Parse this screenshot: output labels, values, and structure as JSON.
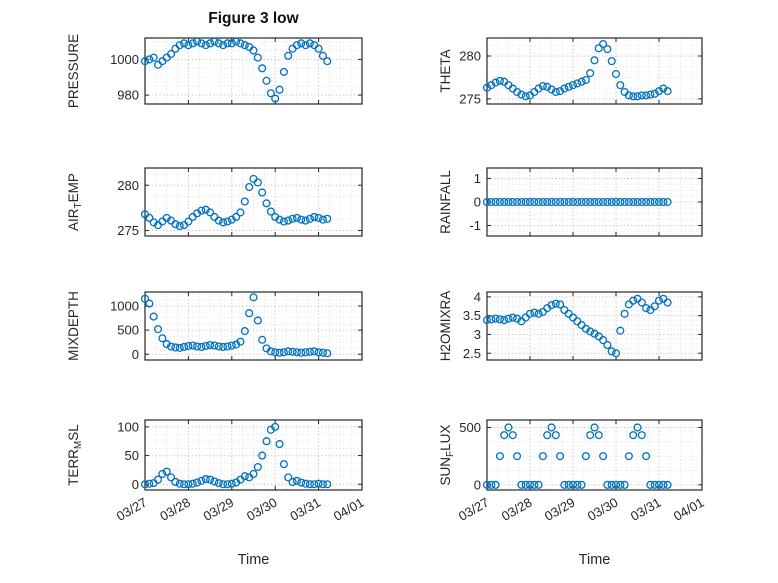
{
  "chart_data": {
    "type": "scatter",
    "title": "Figure 3 low",
    "xlabel": "Time",
    "marker": "open-circle",
    "marker_color": "#0072BD",
    "grid": "dotted",
    "minor_grid": true,
    "layout": {
      "rows": 4,
      "cols": 2,
      "legend": "none"
    },
    "x_unit": "days from 03/27",
    "xlim": [
      0,
      5
    ],
    "xticks": [
      0,
      1,
      2,
      3,
      4,
      5
    ],
    "xtick_labels": [
      "03/27",
      "03/28",
      "03/29",
      "03/30",
      "03/31",
      "04/01"
    ],
    "x": [
      0,
      0.1,
      0.2,
      0.3,
      0.4,
      0.5,
      0.6,
      0.7,
      0.8,
      0.9,
      1,
      1.1,
      1.2,
      1.3,
      1.4,
      1.5,
      1.6,
      1.7,
      1.8,
      1.9,
      2,
      2.1,
      2.2,
      2.3,
      2.4,
      2.5,
      2.6,
      2.7,
      2.8,
      2.9,
      3,
      3.1,
      3.2,
      3.3,
      3.4,
      3.5,
      3.6,
      3.7,
      3.8,
      3.9,
      4,
      4.1,
      4.2
    ],
    "subplots": [
      {
        "name": "PRESSURE",
        "row": 0,
        "col": 0,
        "ylabel_parts": [
          {
            "text": "PRESSURE",
            "sub": false
          }
        ],
        "yticks": [
          980,
          1000
        ],
        "ytick_labels": [
          "980",
          "1000"
        ],
        "ylim": [
          975,
          1012
        ],
        "y": [
          999,
          1000,
          1001,
          997,
          999,
          1001,
          1003,
          1006,
          1008,
          1009,
          1008,
          1009,
          1010,
          1009,
          1008,
          1009,
          1010,
          1009,
          1008,
          1009,
          1009,
          1010,
          1009,
          1008,
          1007,
          1005,
          1001,
          995,
          988,
          981,
          978,
          983,
          993,
          1002,
          1006,
          1008,
          1009,
          1008,
          1009,
          1008,
          1006,
          1002,
          999
        ]
      },
      {
        "name": "THETA",
        "row": 0,
        "col": 1,
        "ylabel_parts": [
          {
            "text": "THETA",
            "sub": false
          }
        ],
        "yticks": [
          275,
          280
        ],
        "ytick_labels": [
          "275",
          "280"
        ],
        "ylim": [
          274.4,
          282.1
        ],
        "y": [
          276.3,
          276.6,
          276.9,
          277.1,
          277.0,
          276.6,
          276.2,
          275.8,
          275.5,
          275.3,
          275.4,
          275.8,
          276.2,
          276.5,
          276.4,
          276.1,
          275.8,
          275.9,
          276.2,
          276.4,
          276.6,
          276.8,
          277.0,
          277.2,
          278.0,
          279.5,
          280.9,
          281.4,
          280.8,
          279.4,
          277.9,
          276.6,
          275.8,
          275.4,
          275.3,
          275.3,
          275.4,
          275.4,
          275.5,
          275.6,
          275.9,
          276.2,
          275.9
        ]
      },
      {
        "name": "AIR_TEMP",
        "row": 1,
        "col": 0,
        "ylabel_parts": [
          {
            "text": "AIR",
            "sub": false
          },
          {
            "text": "T",
            "sub": true
          },
          {
            "text": "EMP",
            "sub": false
          }
        ],
        "yticks": [
          275,
          280
        ],
        "ytick_labels": [
          "275",
          "280"
        ],
        "ylim": [
          274.4,
          281.9
        ],
        "y": [
          276.8,
          276.4,
          275.9,
          275.6,
          276.0,
          276.4,
          276.1,
          275.7,
          275.5,
          275.6,
          276.0,
          276.5,
          276.9,
          277.2,
          277.3,
          277.0,
          276.5,
          276.1,
          275.9,
          276.0,
          276.2,
          276.5,
          277.0,
          278.2,
          279.8,
          280.7,
          280.3,
          279.2,
          278.0,
          277.1,
          276.5,
          276.2,
          276.0,
          276.1,
          276.3,
          276.4,
          276.2,
          276.1,
          276.3,
          276.5,
          276.4,
          276.2,
          276.3
        ]
      },
      {
        "name": "RAINFALL",
        "row": 1,
        "col": 1,
        "ylabel_parts": [
          {
            "text": "RAINFALL",
            "sub": false
          }
        ],
        "yticks": [
          -1,
          0,
          1
        ],
        "ytick_labels": [
          "-1",
          "0",
          "1"
        ],
        "ylim": [
          -1.45,
          1.45
        ],
        "y": [
          0,
          0,
          0,
          0,
          0,
          0,
          0,
          0,
          0,
          0,
          0,
          0,
          0,
          0,
          0,
          0,
          0,
          0,
          0,
          0,
          0,
          0,
          0,
          0,
          0,
          0,
          0,
          0,
          0,
          0,
          0,
          0,
          0,
          0,
          0,
          0,
          0,
          0,
          0,
          0,
          0,
          0,
          0
        ]
      },
      {
        "name": "MIXDEPTH",
        "row": 2,
        "col": 0,
        "ylabel_parts": [
          {
            "text": "MIXDEPTH",
            "sub": false
          }
        ],
        "yticks": [
          0,
          500,
          1000
        ],
        "ytick_labels": [
          "0",
          "500",
          "1000"
        ],
        "ylim": [
          -120,
          1290
        ],
        "y": [
          1150,
          1050,
          780,
          520,
          330,
          210,
          160,
          140,
          130,
          150,
          170,
          180,
          160,
          150,
          170,
          190,
          180,
          160,
          150,
          160,
          180,
          200,
          260,
          480,
          850,
          1180,
          700,
          300,
          120,
          60,
          40,
          30,
          40,
          60,
          50,
          40,
          30,
          40,
          50,
          60,
          40,
          30,
          20
        ]
      },
      {
        "name": "H2OMIXRA",
        "row": 2,
        "col": 1,
        "ylabel_parts": [
          {
            "text": "H2OMIXRA",
            "sub": false
          }
        ],
        "yticks": [
          2.5,
          3,
          3.5,
          4
        ],
        "ytick_labels": [
          "2.5",
          "3",
          "3.5",
          "4"
        ],
        "ylim": [
          2.32,
          4.13
        ],
        "y": [
          3.38,
          3.4,
          3.42,
          3.4,
          3.38,
          3.42,
          3.45,
          3.42,
          3.35,
          3.45,
          3.55,
          3.58,
          3.55,
          3.6,
          3.7,
          3.78,
          3.82,
          3.8,
          3.65,
          3.55,
          3.45,
          3.35,
          3.25,
          3.15,
          3.08,
          3.02,
          2.95,
          2.85,
          2.72,
          2.55,
          2.5,
          3.1,
          3.55,
          3.8,
          3.9,
          3.95,
          3.85,
          3.7,
          3.65,
          3.75,
          3.9,
          3.95,
          3.85
        ]
      },
      {
        "name": "TERR_MSL",
        "row": 3,
        "col": 0,
        "ylabel_parts": [
          {
            "text": "TERR",
            "sub": false
          },
          {
            "text": "M",
            "sub": true
          },
          {
            "text": "SL",
            "sub": false
          }
        ],
        "yticks": [
          0,
          50,
          100
        ],
        "ytick_labels": [
          "0",
          "50",
          "100"
        ],
        "ylim": [
          -10,
          112
        ],
        "y": [
          0,
          1,
          2,
          8,
          18,
          22,
          12,
          4,
          1,
          0,
          0,
          1,
          3,
          6,
          9,
          8,
          5,
          2,
          0,
          0,
          1,
          3,
          8,
          14,
          12,
          18,
          30,
          50,
          75,
          95,
          100,
          70,
          35,
          12,
          4,
          6,
          3,
          1,
          0,
          0,
          1,
          0,
          0
        ]
      },
      {
        "name": "SUN_FLUX",
        "row": 3,
        "col": 1,
        "ylabel_parts": [
          {
            "text": "SUN",
            "sub": false
          },
          {
            "text": "F",
            "sub": true
          },
          {
            "text": "LUX",
            "sub": false
          }
        ],
        "yticks": [
          0,
          500
        ],
        "ytick_labels": [
          "0",
          "500"
        ],
        "ylim": [
          -45,
          565
        ],
        "y": [
          0,
          0,
          0,
          250,
          433,
          500,
          433,
          250,
          0,
          0,
          0,
          0,
          0,
          250,
          433,
          500,
          433,
          250,
          0,
          0,
          0,
          0,
          0,
          250,
          433,
          500,
          433,
          250,
          0,
          0,
          0,
          0,
          0,
          250,
          433,
          500,
          433,
          250,
          0,
          0,
          0,
          0,
          0
        ]
      }
    ]
  }
}
